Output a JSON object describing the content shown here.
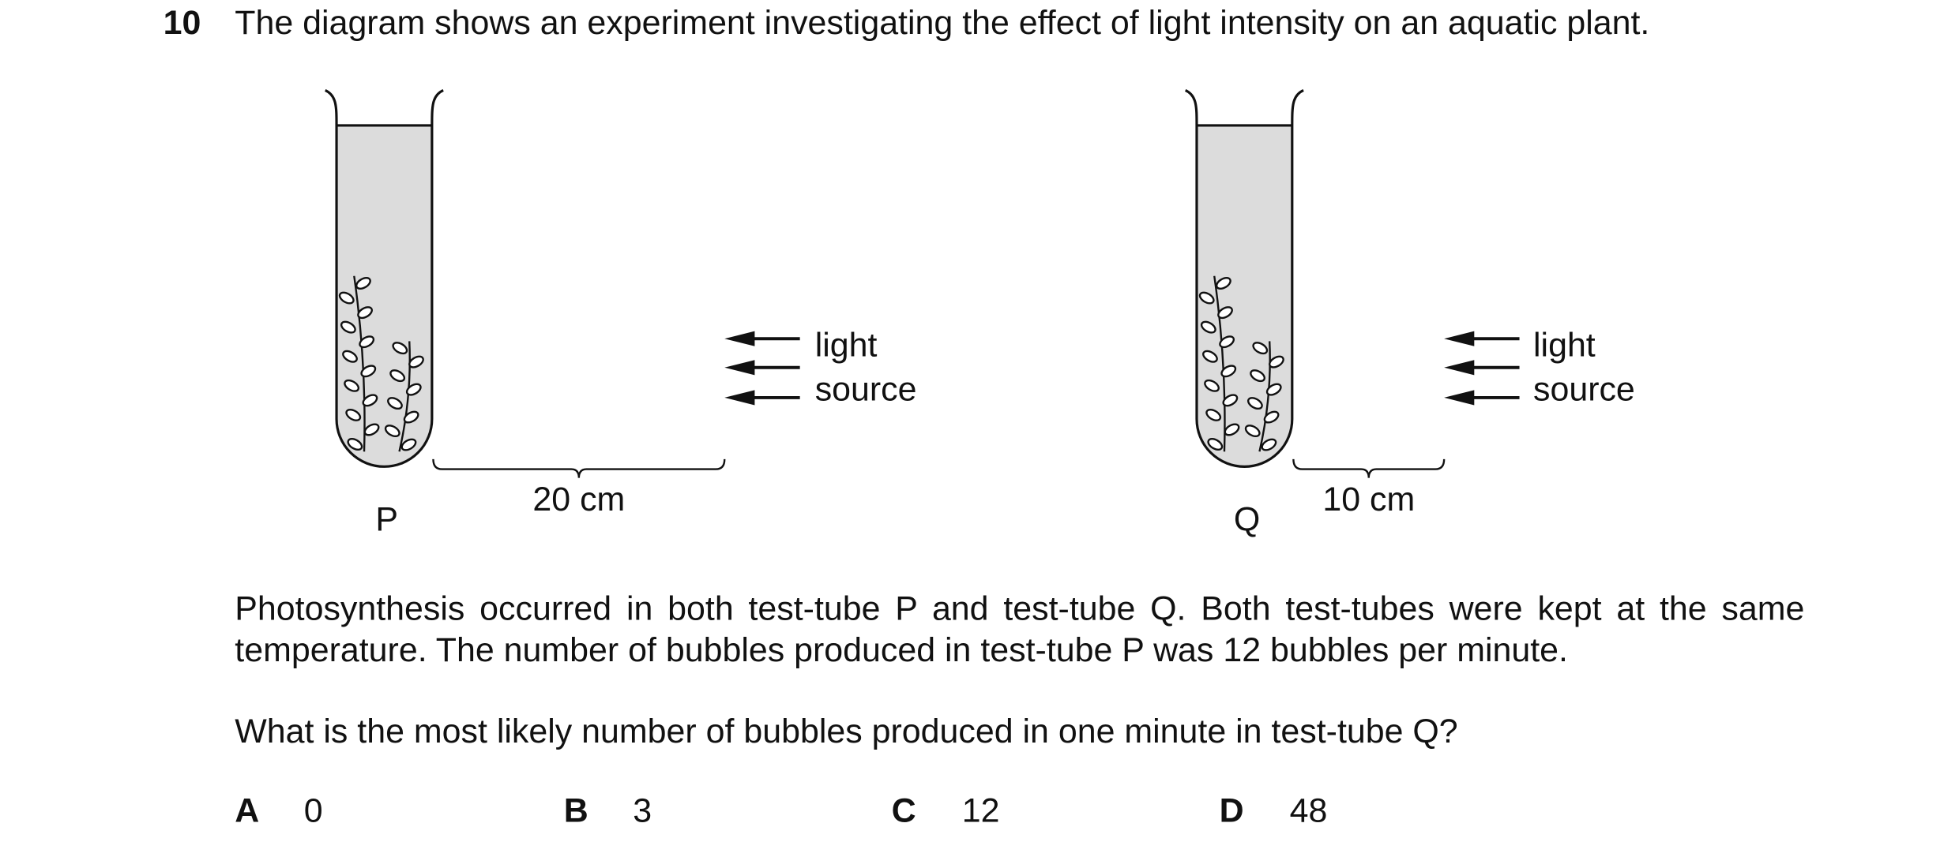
{
  "question": {
    "number": "10",
    "text": "The diagram shows an experiment investigating the effect of light intensity on an aquatic plant."
  },
  "diagram": {
    "tubes": [
      {
        "label": "P",
        "distance": "20 cm",
        "light_label": [
          "light",
          "source"
        ]
      },
      {
        "label": "Q",
        "distance": "10 cm",
        "light_label": [
          "light",
          "source"
        ]
      }
    ]
  },
  "body": [
    "Photosynthesis occurred in both test-tube P and test-tube Q. Both test-tubes were kept at the same temperature. The number of bubbles produced in test-tube P was 12 bubbles per minute.",
    "What is the most likely number of bubbles produced in one minute in test-tube Q?"
  ],
  "options": [
    {
      "letter": "A",
      "text": "0"
    },
    {
      "letter": "B",
      "text": "3"
    },
    {
      "letter": "C",
      "text": "12"
    },
    {
      "letter": "D",
      "text": "48"
    }
  ]
}
